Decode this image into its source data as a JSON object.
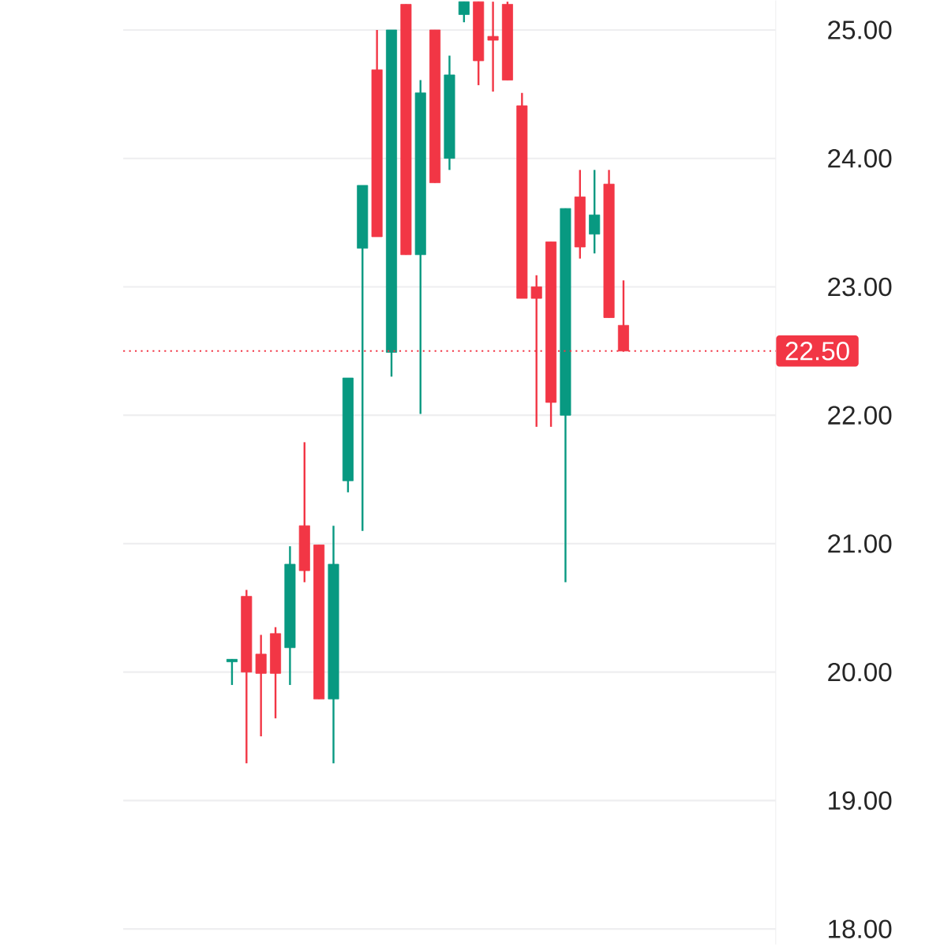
{
  "chart_data": {
    "type": "candlestick",
    "categories": [
      null,
      null,
      null,
      null,
      null,
      null,
      null,
      null,
      null,
      null,
      null,
      null,
      null,
      null,
      null,
      null,
      null,
      null,
      null,
      null,
      null,
      null,
      null,
      null,
      null,
      null,
      null,
      null,
      null,
      null,
      null,
      null,
      null,
      null,
      null,
      null,
      null,
      null,
      null,
      null,
      null,
      null,
      null,
      null,
      null
    ],
    "ohlc": [
      null,
      null,
      null,
      null,
      null,
      null,
      null,
      [
        20.08,
        20.1,
        19.9,
        20.1
      ],
      [
        20.59,
        20.64,
        19.29,
        20.0
      ],
      [
        20.14,
        20.29,
        19.5,
        19.99
      ],
      [
        20.3,
        20.35,
        19.64,
        19.99
      ],
      [
        20.19,
        20.98,
        19.9,
        20.84
      ],
      [
        21.14,
        21.79,
        20.7,
        20.79
      ],
      [
        20.99,
        20.99,
        19.79,
        19.79
      ],
      [
        19.79,
        21.14,
        19.29,
        20.84
      ],
      [
        21.49,
        22.29,
        21.4,
        22.29
      ],
      [
        23.3,
        23.79,
        21.1,
        23.79
      ],
      [
        24.69,
        25.0,
        23.39,
        23.39
      ],
      [
        22.49,
        25.0,
        22.3,
        25.0
      ],
      [
        25.2,
        25.2,
        23.25,
        23.25
      ],
      [
        23.25,
        24.61,
        22.01,
        24.51
      ],
      [
        25.0,
        25.0,
        23.81,
        23.81
      ],
      [
        24.0,
        24.8,
        23.91,
        24.65
      ],
      [
        25.12,
        25.22,
        25.06,
        25.22
      ],
      [
        25.22,
        25.22,
        24.57,
        24.76
      ],
      [
        24.95,
        25.22,
        24.52,
        24.92
      ],
      [
        25.2,
        25.22,
        24.61,
        24.61
      ],
      [
        24.41,
        24.51,
        22.91,
        22.91
      ],
      [
        23.0,
        23.09,
        21.91,
        22.91
      ],
      [
        23.35,
        23.35,
        21.91,
        22.1
      ],
      [
        22.0,
        23.61,
        20.7,
        23.61
      ],
      [
        23.7,
        23.91,
        23.22,
        23.31
      ],
      [
        23.41,
        23.91,
        23.26,
        23.56
      ],
      [
        23.8,
        23.91,
        22.76,
        22.76
      ],
      [
        22.7,
        23.05,
        22.5,
        22.5
      ],
      null,
      null,
      null,
      null,
      null,
      null,
      null,
      null,
      null,
      null
    ],
    "ylim": [
      17.88,
      25.23
    ],
    "yticks": [
      {
        "value": 18,
        "label": "18.00"
      },
      {
        "value": 19,
        "label": "19.00"
      },
      {
        "value": 20,
        "label": "20.00"
      },
      {
        "value": 21,
        "label": "21.00"
      },
      {
        "value": 22,
        "label": "22.00"
      },
      {
        "value": 23,
        "label": "23.00"
      },
      {
        "value": 24,
        "label": "24.00"
      },
      {
        "value": 25,
        "label": "25.00"
      }
    ],
    "ref_lines": [
      {
        "axis": "y",
        "value": 22.5,
        "label": "22.50",
        "color": "#f23645",
        "line_style": "dotted"
      }
    ],
    "grid": "y",
    "tick_labels": "y"
  }
}
